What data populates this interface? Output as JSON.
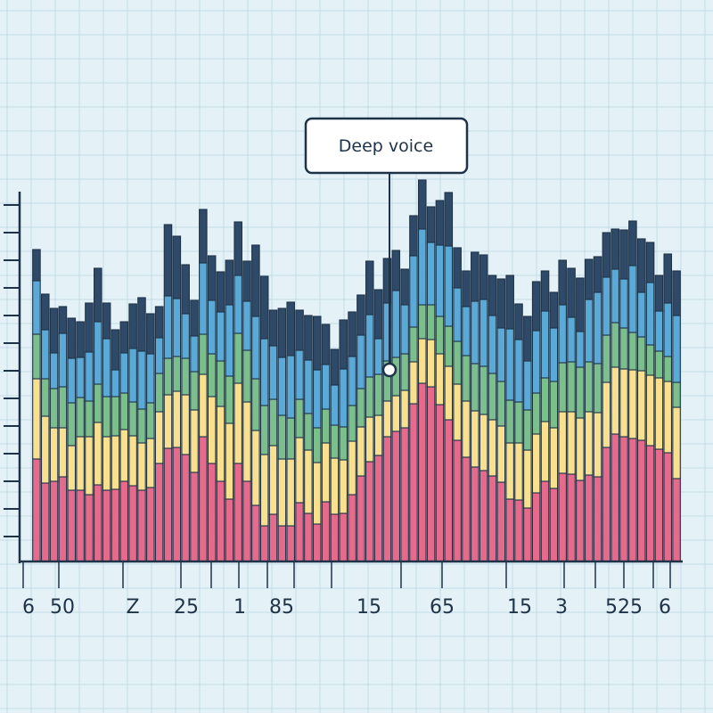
{
  "chart_data": {
    "type": "bar",
    "stacked": true,
    "grid": true,
    "legend": "none",
    "annotation": "Deep voice",
    "x_tick_labels": [
      "6",
      "50",
      "Z",
      "25",
      "1",
      "85",
      "15",
      "65",
      "15",
      "3",
      "525",
      "6"
    ],
    "ylim": [
      0,
      520
    ],
    "colors": [
      "#e56a8c",
      "#f9e08f",
      "#7cbf8c",
      "#5aa9d6",
      "#2e4a68"
    ],
    "series": [
      {
        "values": [
          115,
          88,
          90,
          95,
          80,
          80,
          75,
          86,
          80,
          81,
          90,
          85,
          80,
          83,
          110,
          127,
          128,
          120,
          100,
          140,
          110,
          90,
          70,
          110,
          90,
          63,
          40,
          53,
          40,
          40,
          66,
          54,
          42,
          67,
          53,
          54,
          75,
          96,
          112,
          119,
          140,
          146,
          150,
          177,
          200,
          196,
          176,
          159,
          136,
          117,
          106,
          102,
          96,
          89,
          70,
          69,
          60,
          77,
          90,
          82,
          99,
          98,
          91,
          97,
          95,
          128,
          143,
          140,
          138,
          136,
          130,
          126,
          122,
          93
        ]
      },
      {
        "values": [
          90,
          75,
          60,
          55,
          50,
          60,
          65,
          70,
          60,
          60,
          58,
          56,
          53,
          55,
          58,
          60,
          63,
          67,
          70,
          70,
          75,
          84,
          85,
          90,
          89,
          84,
          80,
          77,
          75,
          75,
          73,
          71,
          69,
          66,
          63,
          60,
          60,
          55,
          50,
          45,
          40,
          40,
          42,
          47,
          50,
          53,
          57,
          60,
          63,
          63,
          63,
          63,
          63,
          63,
          63,
          64,
          65,
          66,
          67,
          68,
          69,
          70,
          70,
          71,
          72,
          73,
          75,
          76,
          77,
          78,
          79,
          80,
          80,
          80
        ]
      },
      {
        "values": [
          50,
          42,
          44,
          46,
          48,
          44,
          40,
          43,
          45,
          44,
          41,
          38,
          38,
          40,
          43,
          41,
          39,
          41,
          43,
          45,
          48,
          51,
          53,
          56,
          58,
          58,
          55,
          52,
          49,
          46,
          43,
          41,
          39,
          38,
          37,
          37,
          40,
          43,
          45,
          46,
          45,
          43,
          41,
          39,
          38,
          39,
          42,
          45,
          48,
          51,
          53,
          54,
          52,
          50,
          48,
          46,
          45,
          46,
          49,
          52,
          55,
          56,
          57,
          56,
          55,
          53,
          50,
          46,
          42,
          38,
          34,
          30,
          28,
          28
        ]
      },
      {
        "values": [
          60,
          55,
          40,
          60,
          50,
          45,
          55,
          70,
          65,
          30,
          45,
          60,
          65,
          55,
          40,
          70,
          65,
          50,
          40,
          80,
          60,
          55,
          80,
          65,
          55,
          70,
          75,
          60,
          65,
          70,
          55,
          60,
          65,
          50,
          45,
          65,
          55,
          60,
          70,
          40,
          65,
          75,
          55,
          80,
          85,
          70,
          80,
          90,
          60,
          55,
          70,
          75,
          65,
          60,
          80,
          70,
          55,
          70,
          75,
          60,
          65,
          50,
          40,
          70,
          80,
          65,
          60,
          55,
          75,
          50,
          70,
          45,
          60,
          75
        ]
      },
      {
        "values": [
          35,
          40,
          50,
          30,
          45,
          40,
          55,
          60,
          40,
          45,
          35,
          50,
          60,
          45,
          35,
          80,
          70,
          55,
          40,
          60,
          50,
          45,
          50,
          60,
          45,
          80,
          70,
          40,
          55,
          60,
          45,
          50,
          60,
          45,
          40,
          55,
          50,
          45,
          60,
          55,
          50,
          45,
          40,
          45,
          55,
          40,
          50,
          60,
          45,
          40,
          55,
          50,
          45,
          55,
          60,
          40,
          50,
          55,
          45,
          40,
          50,
          55,
          60,
          45,
          40,
          50,
          45,
          55,
          50,
          60,
          45,
          40,
          55,
          50
        ]
      }
    ]
  }
}
